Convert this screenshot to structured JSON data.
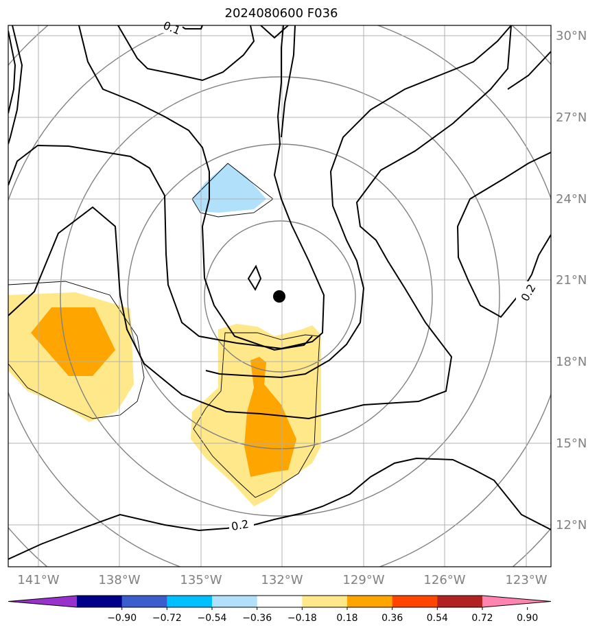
{
  "title": "2024080600 F036",
  "map": {
    "lon_ticks": [
      "141°W",
      "138°W",
      "135°W",
      "132°W",
      "129°W",
      "126°W",
      "123°W"
    ],
    "lat_ticks": [
      "30°N",
      "27°N",
      "24°N",
      "21°N",
      "18°N",
      "15°N",
      "12°N"
    ],
    "storm_center": "132°W 20.4°N",
    "contour_labels": [
      "0.1",
      "0.2",
      "0.2"
    ]
  },
  "colorbar": {
    "ticks": [
      "−0.90",
      "−0.72",
      "−0.54",
      "−0.36",
      "−0.18",
      "0.18",
      "0.36",
      "0.54",
      "0.72",
      "0.90"
    ],
    "colors": [
      "#9932cc",
      "#00008b",
      "#3a5fcd",
      "#00bfff",
      "#b0e0fa",
      "#ffffff",
      "#ffe88a",
      "#ffa500",
      "#ff4500",
      "#b22222",
      "#ff85b0"
    ]
  },
  "fills": {
    "light_orange": "#ffe88a",
    "orange": "#ffa500",
    "light_blue": "#b0e0fa"
  }
}
